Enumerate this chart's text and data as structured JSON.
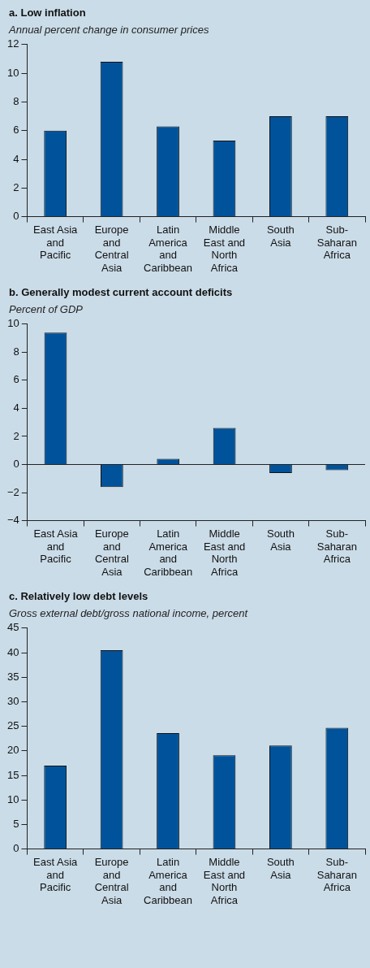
{
  "chart_data": [
    {
      "type": "bar",
      "title": "a. Low inflation",
      "subtitle": "Annual percent change in consumer prices",
      "categories": [
        "East Asia and Pacific",
        "Europe and Central Asia",
        "Latin America and Caribbean",
        "Middle East and North Africa",
        "South Asia",
        "Sub-Saharan Africa"
      ],
      "values": [
        6.0,
        10.8,
        6.3,
        5.3,
        7.0,
        7.0
      ],
      "color": "#00539b",
      "ylim": [
        0,
        12
      ],
      "yticks": [
        0,
        2,
        4,
        6,
        8,
        10,
        12
      ],
      "grid": false,
      "legend": false
    },
    {
      "type": "bar",
      "title": "b. Generally modest current account deficits",
      "subtitle": "Percent of GDP",
      "categories": [
        "East Asia and Pacific",
        "Europe and Central Asia",
        "Latin America and Caribbean",
        "Middle East and North Africa",
        "South Asia",
        "Sub-Saharan Africa"
      ],
      "values": [
        9.4,
        -1.6,
        0.4,
        2.6,
        -0.6,
        -0.4
      ],
      "color": "#00539b",
      "ylim": [
        -4,
        10
      ],
      "yticks": [
        {
          "value": -4,
          "label": "−4"
        },
        {
          "value": -2,
          "label": "−2"
        },
        0,
        2,
        4,
        6,
        8,
        10
      ],
      "ref_lines": [
        {
          "axis": "y",
          "value": 0,
          "color": "#222222"
        }
      ],
      "grid": false,
      "legend": false
    },
    {
      "type": "bar",
      "title": "c. Relatively low debt levels",
      "subtitle": "Gross external debt/gross national income, percent",
      "categories": [
        "East Asia and Pacific",
        "Europe and Central Asia",
        "Latin America and Caribbean",
        "Middle East and North Africa",
        "South Asia",
        "Sub-Saharan Africa"
      ],
      "values": [
        17.0,
        40.5,
        23.6,
        19.1,
        21.1,
        24.7
      ],
      "color": "#00539b",
      "ylim": [
        0,
        45
      ],
      "yticks": [
        0,
        5,
        10,
        15,
        20,
        25,
        30,
        35,
        40,
        45
      ],
      "grid": false,
      "legend": false
    }
  ]
}
